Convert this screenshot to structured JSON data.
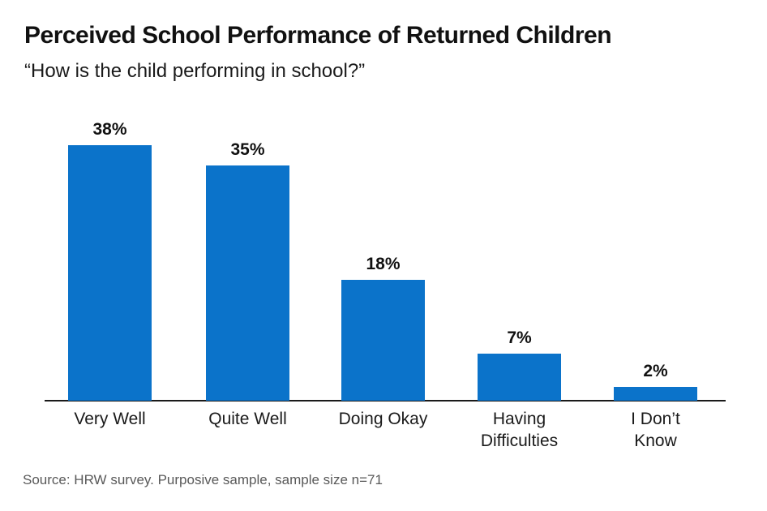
{
  "header": {
    "title": "Perceived School Performance of Returned Children",
    "subtitle": "“How is the child performing in school?”"
  },
  "footer": {
    "source": "Source: HRW survey. Purposive sample, sample size n=71"
  },
  "chart_data": {
    "type": "bar",
    "title": "Perceived School Performance of Returned Children",
    "subtitle": "“How is the child performing in school?”",
    "categories": [
      "Very Well",
      "Quite Well",
      "Doing Okay",
      "Having Difficulties",
      "I Don’t Know"
    ],
    "category_label_lines": [
      [
        "Very Well"
      ],
      [
        "Quite Well"
      ],
      [
        "Doing Okay"
      ],
      [
        "Having",
        "Difficulties"
      ],
      [
        "I Don’t",
        "Know"
      ]
    ],
    "values": [
      38,
      35,
      18,
      7,
      2
    ],
    "value_labels": [
      "38%",
      "35%",
      "18%",
      "7%",
      "2%"
    ],
    "unit": "percent",
    "ylim": [
      0,
      40
    ],
    "grid": false,
    "legend": false,
    "bar_color": "#0b73ca",
    "axis_color": "#1a1a1a",
    "text_color": "#111111",
    "source_text_color": "#595959",
    "source": "Source: HRW survey. Purposive sample, sample size n=71"
  }
}
